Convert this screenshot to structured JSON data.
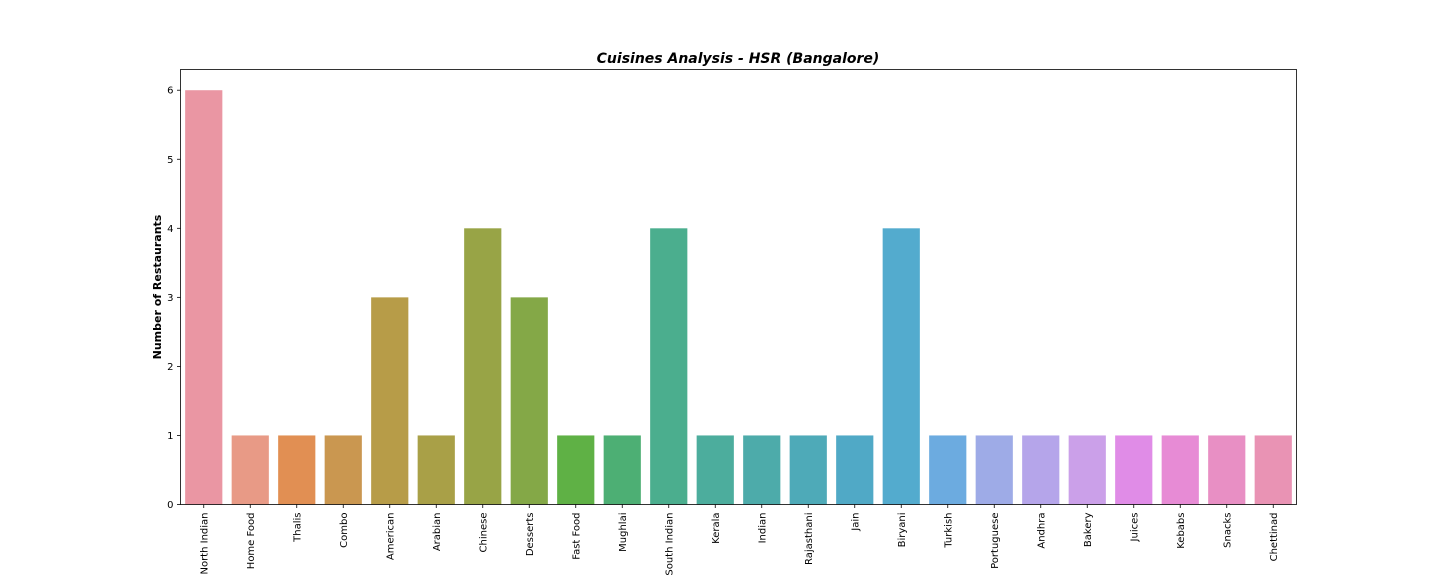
{
  "chart_data": {
    "type": "bar",
    "title": "Cuisines Analysis - HSR (Bangalore)",
    "xlabel": "",
    "ylabel": "Number of Restaurants",
    "ylim": [
      0,
      6.3
    ],
    "yticks": [
      "0",
      "1",
      "2",
      "3",
      "4",
      "5",
      "6"
    ],
    "grid": false,
    "categories": [
      "North Indian",
      "Home Food",
      "Thalis",
      "Combo",
      "American",
      "Arabian",
      "Chinese",
      "Desserts",
      "Fast Food",
      "Mughlai",
      "South Indian",
      "Kerala",
      "Indian",
      "Rajasthani",
      "Jain",
      "Biryani",
      "Turkish",
      "Portuguese",
      "Andhra",
      "Bakery",
      "Juices",
      "Kebabs",
      "Snacks",
      "Chettinad"
    ],
    "values": [
      6,
      1,
      1,
      1,
      3,
      1,
      4,
      3,
      1,
      1,
      4,
      1,
      1,
      1,
      1,
      4,
      1,
      1,
      1,
      1,
      1,
      1,
      1,
      1
    ],
    "colors": [
      "#ea96a3",
      "#e89a86",
      "#e18f53",
      "#ca9750",
      "#b79c48",
      "#a9a047",
      "#98a446",
      "#84a847",
      "#5fb145",
      "#4daf74",
      "#4bae8e",
      "#4cad9d",
      "#4dabaa",
      "#4eaab8",
      "#50a9c6",
      "#53abce",
      "#6cabe0",
      "#9eabe7",
      "#b5a5ea",
      "#cba0e9",
      "#e08ce7",
      "#e78bd5",
      "#e88fc4",
      "#e993b4"
    ]
  }
}
